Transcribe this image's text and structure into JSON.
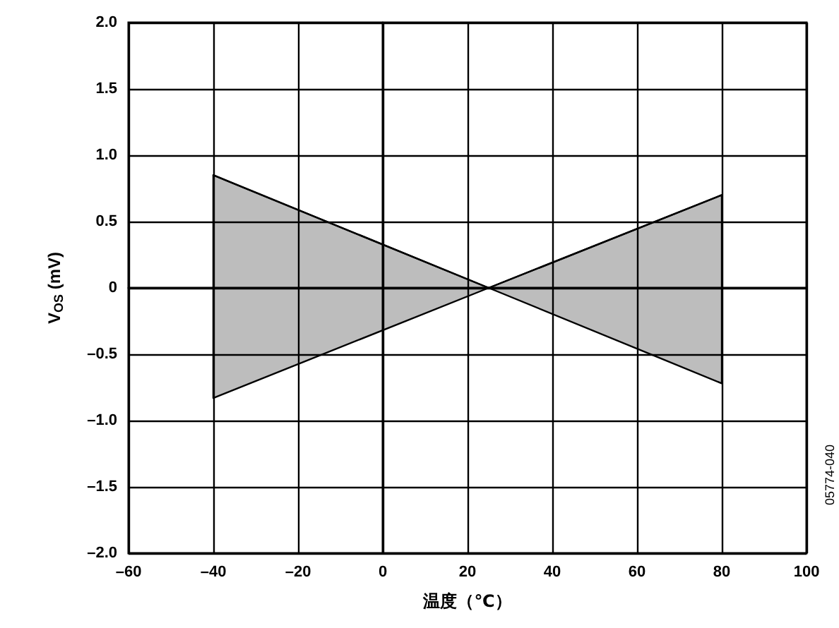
{
  "chart_data": {
    "type": "line",
    "xlabel": "温度（℃）",
    "ylabel": "V$_{OS}$ (mV)",
    "series": [
      {
        "color": "#000000",
        "x": [
          -40,
          25,
          80
        ],
        "values": [
          0.85,
          0,
          0.7
        ],
        "lower": [
          -0.83,
          0,
          -0.72
        ],
        "upper": [
          0.85,
          0,
          0.7
        ]
      }
    ],
    "xlim": [
      -60,
      100
    ],
    "xticks": [
      {
        "value": -60,
        "label": "–60"
      },
      {
        "value": -40,
        "label": "–40"
      },
      {
        "value": -20,
        "label": "–20"
      },
      0,
      20,
      40,
      60,
      80,
      100
    ],
    "ylim": [
      -2,
      2
    ],
    "yticks": [
      {
        "value": -2,
        "label": "–2.0"
      },
      {
        "value": -1.5,
        "label": "–1.5"
      },
      {
        "value": -1,
        "label": "–1.0"
      },
      {
        "value": -0.5,
        "label": "–0.5"
      },
      0,
      {
        "value": 0.5,
        "label": "0.5"
      },
      {
        "value": 1,
        "label": "1.0"
      },
      {
        "value": 1.5,
        "label": "1.5"
      },
      {
        "value": 2,
        "label": "2.0"
      }
    ],
    "grid": true,
    "annotations": [
      "05774-040"
    ]
  }
}
